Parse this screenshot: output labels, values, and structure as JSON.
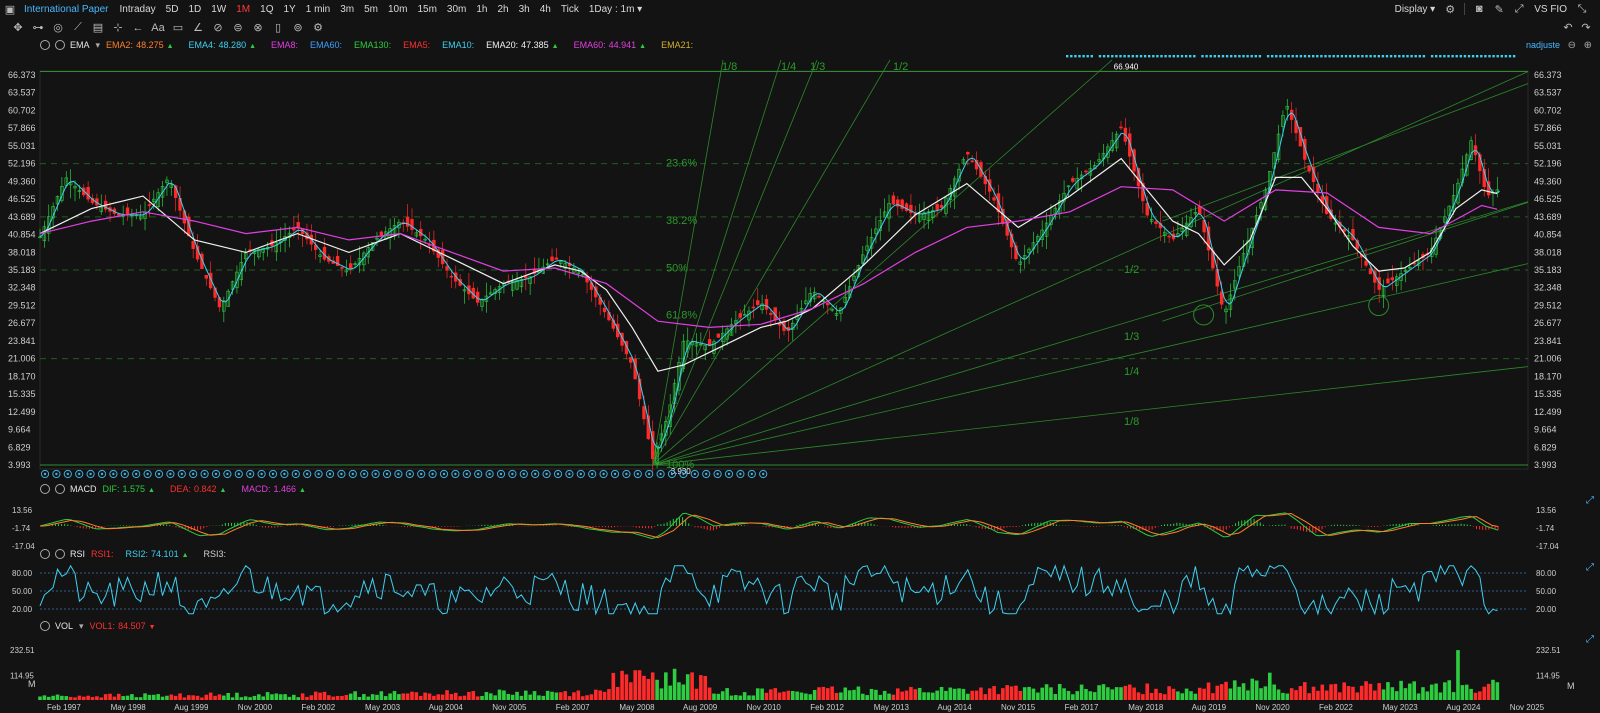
{
  "toolbar": {
    "symbol": "International Paper",
    "timeframes": [
      "Intraday",
      "5D",
      "1D",
      "1W",
      "1M",
      "1Q",
      "1Y",
      "1 min",
      "3m",
      "5m",
      "10m",
      "15m",
      "30m",
      "1h",
      "2h",
      "3h",
      "4h",
      "Tick"
    ],
    "active_timeframe": "1M",
    "interval_select": "1Day : 1m",
    "display_label": "Display",
    "right_text": "VS FIO",
    "icons": [
      "panel-icon",
      "crosshair-icon",
      "line-tool-icon",
      "shape-tool-icon",
      "text-icon",
      "comment-icon",
      "pen-icon",
      "eraser-icon",
      "lock-icon",
      "trash-icon",
      "eye-icon",
      "settings-icon",
      "camera-icon",
      "fullscreen-icon",
      "undo-icon",
      "redo-icon"
    ]
  },
  "main_panel": {
    "indicator": "EMA",
    "ema_items": [
      {
        "label": "EMA2:",
        "value": "48.275",
        "arrow": "▲",
        "color": "#ff7f2a"
      },
      {
        "label": "EMA4:",
        "value": "48.280",
        "arrow": "▲",
        "color": "#3fd0f0"
      },
      {
        "label": "EMA8:",
        "value": "",
        "arrow": "",
        "color": "#e040e0"
      },
      {
        "label": "EMA60:",
        "value": "",
        "arrow": "",
        "color": "#3fa0ff"
      },
      {
        "label": "EMA130:",
        "value": "",
        "arrow": "",
        "color": "#2ecc40"
      },
      {
        "label": "EMA5:",
        "value": "",
        "arrow": "",
        "color": "#ff3030"
      },
      {
        "label": "EMA10:",
        "value": "",
        "arrow": "",
        "color": "#3fd0f0"
      },
      {
        "label": "EMA20:",
        "value": "47.385",
        "arrow": "▲",
        "color": "#f0f0f0"
      },
      {
        "label": "EMA60:",
        "value": "44.941",
        "arrow": "▲",
        "color": "#e040e0"
      },
      {
        "label": "EMA21:",
        "value": "",
        "arrow": "",
        "color": "#d0b030"
      }
    ],
    "right_label": "nadjuste",
    "high_label": "66.940",
    "low_label": "3.930",
    "fib_levels": [
      "23.6%",
      "38.2%",
      "50%",
      "61.8%",
      "100%"
    ],
    "fan_labels_top": [
      "1/8",
      "1/4",
      "1/3",
      "1/2"
    ],
    "fan_labels_bottom": [
      "1/2",
      "1/3",
      "1/4",
      "1/8"
    ]
  },
  "macd_panel": {
    "indicator": "MACD",
    "items": [
      {
        "label": "DIF:",
        "value": "1.575",
        "arrow": "▲",
        "color": "#2ecc40"
      },
      {
        "label": "DEA:",
        "value": "0.842",
        "arrow": "▲",
        "color": "#ff3030"
      },
      {
        "label": "MACD:",
        "value": "1.466",
        "arrow": "▲",
        "color": "#e040e0"
      }
    ],
    "yticks": [
      "13.56",
      "-1.74",
      "-17.04"
    ]
  },
  "rsi_panel": {
    "indicator": "RSI",
    "items": [
      {
        "label": "RSI1:",
        "value": "",
        "arrow": "",
        "color": "#ff3030"
      },
      {
        "label": "RSI2:",
        "value": "74.101",
        "arrow": "▲",
        "color": "#3fd0f0"
      },
      {
        "label": "RSI3:",
        "value": "",
        "arrow": "",
        "color": "#cfcfcf"
      }
    ],
    "yticks": [
      "80.00",
      "50.00",
      "20.00"
    ]
  },
  "vol_panel": {
    "indicator": "VOL",
    "items": [
      {
        "label": "VOL1:",
        "value": "84.507",
        "arrow": "▼",
        "color": "#ff3030"
      }
    ],
    "yticks": [
      "232.51",
      "114.95"
    ],
    "unit": "M"
  },
  "chart_data": {
    "type": "line",
    "title": "",
    "price_axis_ticks": [
      "66.373",
      "63.537",
      "60.702",
      "57.866",
      "55.031",
      "52.196",
      "49.360",
      "46.525",
      "43.689",
      "40.854",
      "38.018",
      "35.183",
      "32.348",
      "29.512",
      "26.677",
      "23.841",
      "21.006",
      "18.170",
      "15.335",
      "12.499",
      "9.664",
      "6.829",
      "3.993"
    ],
    "ylim": [
      3.993,
      66.373
    ],
    "x_labels": [
      "Feb 1997",
      "May 1998",
      "Aug 1999",
      "Nov 2000",
      "Feb 2002",
      "May 2003",
      "Aug 2004",
      "Nov 2005",
      "Feb 2007",
      "May 2008",
      "Aug 2009",
      "Nov 2010",
      "Feb 2012",
      "May 2013",
      "Aug 2014",
      "Nov 2015",
      "Feb 2017",
      "May 2018",
      "Aug 2019",
      "Nov 2020",
      "Feb 2022",
      "May 2023",
      "Aug 2024",
      "Nov 2025"
    ],
    "xlim": [
      1997.0,
      2025.9
    ],
    "price": {
      "x": [
        1997.0,
        1997.5,
        1998.0,
        1998.5,
        1999.0,
        1999.5,
        2000.0,
        2000.5,
        2001.0,
        2001.5,
        2002.0,
        2002.5,
        2003.0,
        2003.5,
        2004.0,
        2004.5,
        2005.0,
        2005.5,
        2006.0,
        2006.5,
        2007.0,
        2007.5,
        2008.0,
        2008.5,
        2008.9,
        2009.2,
        2009.5,
        2010.0,
        2010.5,
        2011.0,
        2011.5,
        2012.0,
        2012.5,
        2013.0,
        2013.5,
        2014.0,
        2014.5,
        2015.0,
        2015.5,
        2016.0,
        2016.5,
        2017.0,
        2017.5,
        2018.0,
        2018.5,
        2019.0,
        2019.5,
        2020.0,
        2020.3,
        2020.8,
        2021.2,
        2021.6,
        2022.0,
        2022.5,
        2023.0,
        2023.5,
        2024.0,
        2024.5,
        2024.8,
        2025.1,
        2025.3
      ],
      "y": [
        40.5,
        50.0,
        46.0,
        44.0,
        44.0,
        50.0,
        38.0,
        29.0,
        38.0,
        39.0,
        42.0,
        37.0,
        35.0,
        40.0,
        43.0,
        40.0,
        34.0,
        30.0,
        33.0,
        34.0,
        37.0,
        35.0,
        28.0,
        20.0,
        5.0,
        12.0,
        24.0,
        23.0,
        27.0,
        30.0,
        25.0,
        32.0,
        28.0,
        38.0,
        46.0,
        44.0,
        45.0,
        54.0,
        47.0,
        36.0,
        42.0,
        49.0,
        52.0,
        58.0,
        44.0,
        40.0,
        45.0,
        28.0,
        36.0,
        48.0,
        62.0,
        52.0,
        44.0,
        40.0,
        32.0,
        35.0,
        38.0,
        48.0,
        56.0,
        47.0,
        48.0
      ]
    },
    "series": [
      {
        "name": "EMA20",
        "color": "#f0f0f0",
        "x": [
          1997.0,
          1998.0,
          1999.0,
          2000.0,
          2001.0,
          2002.0,
          2003.0,
          2004.0,
          2005.0,
          2006.0,
          2007.0,
          2007.5,
          2008.0,
          2008.5,
          2009.0,
          2009.5,
          2010.0,
          2010.5,
          2011.0,
          2011.5,
          2012.0,
          2013.0,
          2014.0,
          2015.0,
          2016.0,
          2017.0,
          2018.0,
          2019.0,
          2019.5,
          2020.0,
          2020.5,
          2021.0,
          2021.5,
          2022.0,
          2022.5,
          2023.0,
          2023.5,
          2024.0,
          2024.5,
          2025.0,
          2025.3
        ],
        "y": [
          41.0,
          45.0,
          47.0,
          40.0,
          38.0,
          41.0,
          38.0,
          41.0,
          37.0,
          33.0,
          36.0,
          35.0,
          32.0,
          26.0,
          19.0,
          20.0,
          22.0,
          24.0,
          26.0,
          27.0,
          29.0,
          36.0,
          44.0,
          49.0,
          42.0,
          47.0,
          53.0,
          43.0,
          41.0,
          36.0,
          40.0,
          50.0,
          50.0,
          45.0,
          39.0,
          35.0,
          35.5,
          38.0,
          45.0,
          48.0,
          47.4
        ]
      },
      {
        "name": "EMA60",
        "color": "#e040e0",
        "x": [
          1997.0,
          1998.0,
          1999.0,
          2000.0,
          2001.0,
          2002.0,
          2003.0,
          2004.0,
          2005.0,
          2006.0,
          2007.0,
          2008.0,
          2009.0,
          2010.0,
          2011.0,
          2012.0,
          2013.0,
          2014.0,
          2015.0,
          2016.0,
          2017.0,
          2018.0,
          2019.0,
          2020.0,
          2021.0,
          2022.0,
          2023.0,
          2024.0,
          2025.0,
          2025.3
        ],
        "y": [
          41.0,
          43.0,
          44.5,
          43.0,
          41.0,
          42.0,
          40.0,
          41.0,
          38.0,
          35.0,
          35.5,
          33.0,
          27.0,
          26.0,
          26.5,
          29.0,
          33.0,
          38.0,
          42.0,
          43.0,
          44.5,
          48.5,
          48.0,
          43.0,
          48.0,
          47.5,
          42.0,
          41.0,
          45.5,
          44.9
        ]
      }
    ]
  }
}
